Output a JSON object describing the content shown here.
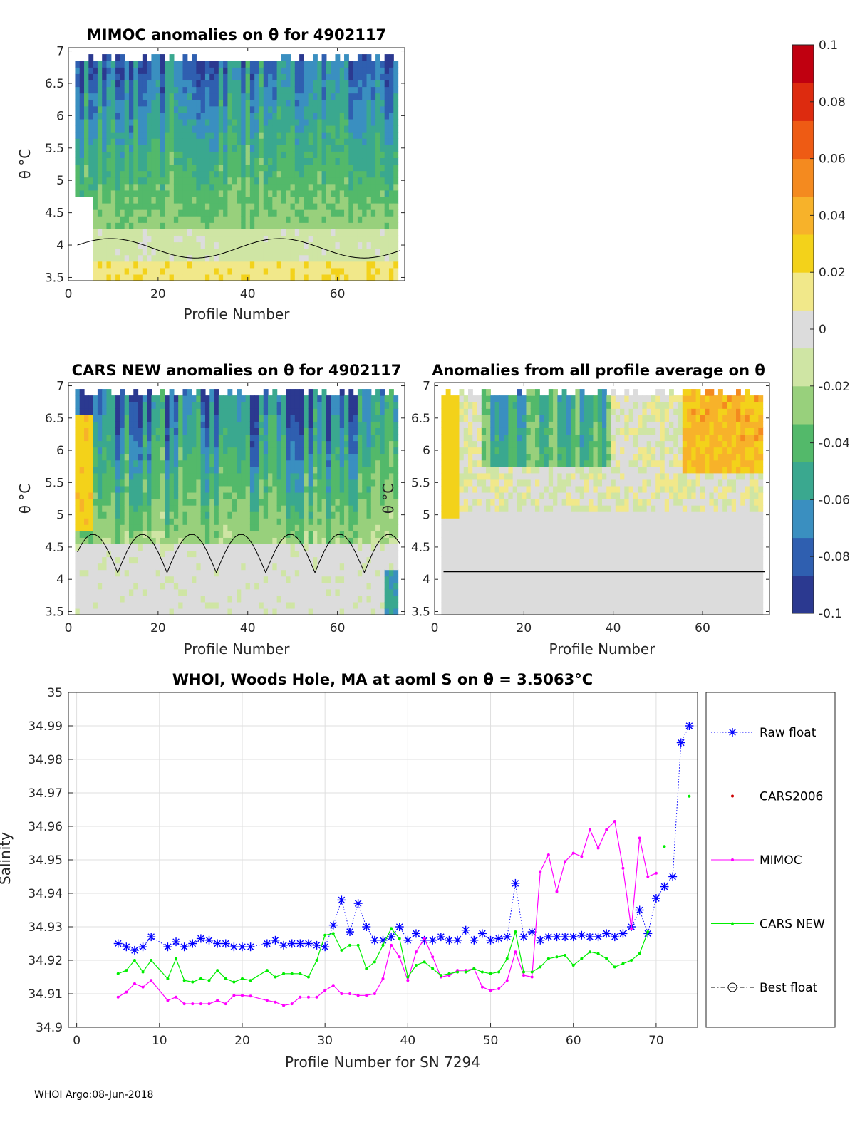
{
  "colormap": [
    "#2b3990",
    "#2f5fb0",
    "#3a8fc0",
    "#3aa88f",
    "#53b96a",
    "#98d07c",
    "#cfe5a4",
    "#dcdcdc",
    "#f1e88a",
    "#f3d21a",
    "#f7b22a",
    "#f48a1f",
    "#ee5b14",
    "#dd2b0f",
    "#c00010"
  ],
  "colorbar": {
    "ticks": [
      "0.1",
      "0.08",
      "0.06",
      "0.04",
      "0.02",
      "0",
      "-0.02",
      "-0.04",
      "-0.06",
      "-0.08",
      "-0.1"
    ]
  },
  "panels": {
    "mimoc": {
      "title": "MIMOC anomalies on θ  for 4902117",
      "ylabel": "θ °C",
      "xlabel": "Profile Number"
    },
    "cars": {
      "title": "CARS NEW anomalies on θ for 4902117",
      "ylabel": "θ °C",
      "xlabel": "Profile Number"
    },
    "avg": {
      "title": "Anomalies from all profile average on θ",
      "ylabel": "θ °C",
      "xlabel": "Profile Number"
    },
    "theta_ticks": [
      "7",
      "6.5",
      "6",
      "5.5",
      "5",
      "4.5",
      "4",
      "3.5"
    ],
    "profile_ticks": [
      "0",
      "20",
      "40",
      "60"
    ]
  },
  "salinity": {
    "title": "WHOI, Woods Hole, MA at aoml S on θ = 3.5063°C",
    "xlabel": "Profile Number for SN 7294",
    "ylabel": "Salinity",
    "yticks": [
      "35",
      "34.99",
      "34.98",
      "34.97",
      "34.96",
      "34.95",
      "34.94",
      "34.93",
      "34.92",
      "34.91",
      "34.9"
    ],
    "xticks": [
      "0",
      "10",
      "20",
      "30",
      "40",
      "50",
      "60",
      "70"
    ]
  },
  "legend": {
    "items": [
      "Raw float",
      "CARS2006",
      "MIMOC",
      "CARS NEW",
      "Best float"
    ]
  },
  "footer": {
    "text": "WHOI Argo:08-Jun-2018"
  },
  "chart_data": [
    {
      "type": "heatmap",
      "title": "MIMOC anomalies on θ for 4902117",
      "xlabel": "Profile Number",
      "ylabel": "θ °C",
      "xlim": [
        0,
        75
      ],
      "ylim": [
        3.45,
        7.05
      ],
      "colorbar_range": [
        -0.1,
        0.1
      ],
      "description_values": {
        "upper_layer_typical": -0.06,
        "lower_layer_typical": 0.015
      }
    },
    {
      "type": "heatmap",
      "title": "CARS NEW anomalies on θ for 4902117",
      "xlabel": "Profile Number",
      "ylabel": "θ °C",
      "xlim": [
        0,
        75
      ],
      "ylim": [
        3.45,
        7.05
      ],
      "colorbar_range": [
        -0.1,
        0.1
      ]
    },
    {
      "type": "heatmap",
      "title": "Anomalies from all profile average on θ",
      "xlabel": "Profile Number",
      "ylabel": "θ °C",
      "xlim": [
        0,
        75
      ],
      "ylim": [
        3.45,
        7.05
      ],
      "colorbar_range": [
        -0.1,
        0.1
      ]
    },
    {
      "type": "line",
      "title": "WHOI, Woods Hole, MA at aoml S on θ = 3.5063°C",
      "xlabel": "Profile Number for SN 7294",
      "ylabel": "Salinity",
      "xlim": [
        -1,
        75
      ],
      "ylim": [
        34.9,
        35.0
      ],
      "series": [
        {
          "name": "Raw float",
          "color": "#0000ff",
          "x": [
            5,
            6,
            7,
            8,
            9,
            11,
            12,
            13,
            14,
            15,
            16,
            17,
            18,
            19,
            20,
            21,
            23,
            24,
            25,
            26,
            27,
            28,
            29,
            30,
            31,
            32,
            33,
            34,
            35,
            36,
            37,
            38,
            39,
            40,
            41,
            42,
            43,
            44,
            45,
            46,
            47,
            48,
            49,
            50,
            51,
            52,
            53,
            54,
            55,
            56,
            57,
            58,
            59,
            60,
            61,
            62,
            63,
            64,
            65,
            66,
            67,
            68,
            69,
            70,
            71,
            72,
            73,
            74
          ],
          "y": [
            34.925,
            34.924,
            34.923,
            34.924,
            34.927,
            34.924,
            34.9255,
            34.924,
            34.925,
            34.9265,
            34.926,
            34.925,
            34.925,
            34.924,
            34.924,
            34.924,
            34.925,
            34.926,
            34.9245,
            34.925,
            34.925,
            34.925,
            34.9245,
            34.924,
            34.9305,
            34.938,
            34.9285,
            34.937,
            34.93,
            34.926,
            34.926,
            34.927,
            34.93,
            34.926,
            34.928,
            34.926,
            34.926,
            34.927,
            34.926,
            34.926,
            34.929,
            34.926,
            34.928,
            34.926,
            34.9265,
            34.927,
            34.943,
            34.927,
            34.9285,
            34.926,
            34.927,
            34.927,
            34.927,
            34.927,
            34.9275,
            34.927,
            34.927,
            34.928,
            34.927,
            34.928,
            34.93,
            34.935,
            34.928,
            34.9385,
            34.942,
            34.945,
            34.985,
            34.99
          ]
        },
        {
          "name": "CARS2006",
          "color": "#cc0000",
          "x": [],
          "y": []
        },
        {
          "name": "MIMOC",
          "color": "#ff00ff",
          "x": [
            5,
            6,
            7,
            8,
            9,
            11,
            12,
            13,
            14,
            15,
            16,
            17,
            18,
            19,
            20,
            21,
            23,
            24,
            25,
            26,
            27,
            28,
            29,
            30,
            31,
            32,
            33,
            34,
            35,
            36,
            37,
            38,
            39,
            40,
            41,
            42,
            43,
            44,
            45,
            46,
            47,
            48,
            49,
            50,
            51,
            52,
            53,
            54,
            55,
            56,
            57,
            58,
            59,
            60,
            61,
            62,
            63,
            64,
            65,
            66,
            67,
            68,
            69,
            70
          ],
          "y": [
            34.909,
            34.9105,
            34.913,
            34.912,
            34.914,
            34.908,
            34.909,
            34.907,
            34.907,
            34.907,
            34.907,
            34.908,
            34.907,
            34.9095,
            34.9095,
            34.9093,
            34.908,
            34.9075,
            34.9065,
            34.907,
            34.909,
            34.909,
            34.909,
            34.911,
            34.9125,
            34.91,
            34.91,
            34.9095,
            34.9095,
            34.91,
            34.9145,
            34.9245,
            34.921,
            34.914,
            34.9225,
            34.9265,
            34.921,
            34.915,
            34.9155,
            34.917,
            34.917,
            34.9175,
            34.912,
            34.911,
            34.9115,
            34.914,
            34.9225,
            34.9155,
            34.915,
            34.9465,
            34.9515,
            34.9405,
            34.9495,
            34.952,
            34.951,
            34.959,
            34.9535,
            34.959,
            34.9615,
            34.9475,
            34.9295,
            34.9565,
            34.945,
            34.946
          ]
        },
        {
          "name": "CARS NEW",
          "color": "#00ee00",
          "x": [
            5,
            6,
            7,
            8,
            9,
            11,
            12,
            13,
            14,
            15,
            16,
            17,
            18,
            19,
            20,
            21,
            23,
            24,
            25,
            26,
            27,
            28,
            29,
            30,
            31,
            32,
            33,
            34,
            35,
            36,
            37,
            38,
            39,
            40,
            41,
            42,
            43,
            44,
            45,
            46,
            47,
            48,
            49,
            50,
            51,
            52,
            53,
            54,
            55,
            56,
            57,
            58,
            59,
            60,
            61,
            62,
            63,
            64,
            65,
            66,
            67,
            68,
            69,
            71,
            74
          ],
          "y": [
            34.916,
            34.917,
            34.92,
            34.9165,
            34.92,
            34.9145,
            34.9205,
            34.914,
            34.9135,
            34.9145,
            34.914,
            34.917,
            34.9145,
            34.9135,
            34.9145,
            34.914,
            34.917,
            34.915,
            34.916,
            34.916,
            34.916,
            34.915,
            34.92,
            34.9275,
            34.928,
            34.923,
            34.9245,
            34.9245,
            34.9175,
            34.9195,
            34.9245,
            34.9295,
            34.9265,
            34.915,
            34.9185,
            34.9195,
            34.9175,
            34.9155,
            34.916,
            34.9165,
            34.9165,
            34.9175,
            34.9165,
            34.916,
            34.9165,
            34.9205,
            34.9285,
            34.9165,
            34.9165,
            34.918,
            34.9205,
            34.921,
            34.9215,
            34.9185,
            34.9205,
            34.9225,
            34.922,
            34.9205,
            34.918,
            34.919,
            34.92,
            34.922,
            34.9285,
            34.954,
            34.969
          ]
        },
        {
          "name": "Best float",
          "color": "#000000",
          "x": [],
          "y": []
        }
      ]
    }
  ]
}
